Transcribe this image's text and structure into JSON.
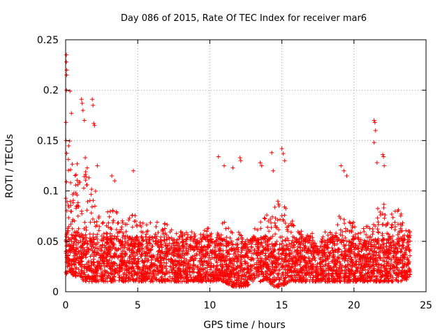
{
  "chart_data": {
    "type": "scatter",
    "title": "Day 086 of 2015, Rate Of TEC Index for receiver mar6",
    "xlabel": "GPS time / hours",
    "ylabel": "ROTI / TECUs",
    "xlim": [
      0,
      25
    ],
    "ylim": [
      0,
      0.25
    ],
    "x_ticks": [
      0,
      5,
      10,
      15,
      20,
      25
    ],
    "y_ticks": [
      0,
      0.05,
      0.1,
      0.15,
      0.2,
      0.25
    ],
    "x_tick_labels": [
      "0",
      "5",
      "10",
      "15",
      "20",
      "25"
    ],
    "y_tick_labels": [
      "0",
      "0.05",
      "0.1",
      "0.15",
      "0.2",
      "0.25"
    ],
    "grid": true,
    "marker": "+",
    "color": "#ff0000",
    "time_range_hours": [
      0,
      23.9
    ],
    "series": [
      {
        "name": "ROTI",
        "envelope": {
          "x": [
            0.0,
            0.15,
            0.3,
            0.6,
            1.0,
            1.3,
            1.6,
            1.9,
            2.3,
            2.7,
            3.1,
            3.5,
            4.0,
            4.5,
            5.0,
            5.5,
            6.0,
            6.5,
            7.0,
            7.5,
            8.0,
            8.5,
            9.0,
            9.5,
            10.0,
            10.5,
            11.0,
            11.5,
            12.0,
            12.5,
            13.0,
            13.5,
            14.0,
            14.5,
            15.0,
            15.5,
            16.0,
            16.5,
            17.0,
            17.5,
            18.0,
            18.5,
            19.0,
            19.5,
            20.0,
            20.5,
            21.0,
            21.5,
            22.0,
            22.5,
            23.0,
            23.5,
            23.9
          ],
          "high": [
            0.13,
            0.16,
            0.15,
            0.13,
            0.14,
            0.14,
            0.12,
            0.12,
            0.08,
            0.07,
            0.09,
            0.09,
            0.07,
            0.08,
            0.08,
            0.07,
            0.07,
            0.07,
            0.07,
            0.06,
            0.06,
            0.06,
            0.06,
            0.06,
            0.07,
            0.07,
            0.07,
            0.06,
            0.06,
            0.05,
            0.06,
            0.08,
            0.08,
            0.09,
            0.1,
            0.08,
            0.07,
            0.06,
            0.06,
            0.05,
            0.06,
            0.06,
            0.08,
            0.07,
            0.07,
            0.06,
            0.07,
            0.08,
            0.09,
            0.08,
            0.09,
            0.07,
            0.06
          ],
          "low": [
            0.015,
            0.02,
            0.02,
            0.015,
            0.015,
            0.01,
            0.01,
            0.01,
            0.01,
            0.01,
            0.01,
            0.01,
            0.01,
            0.01,
            0.01,
            0.01,
            0.01,
            0.01,
            0.01,
            0.01,
            0.01,
            0.01,
            0.01,
            0.01,
            0.01,
            0.01,
            0.01,
            0.005,
            0.005,
            0.005,
            0.01,
            0.01,
            0.01,
            0.005,
            0.005,
            0.01,
            0.01,
            0.01,
            0.01,
            0.01,
            0.01,
            0.01,
            0.01,
            0.01,
            0.01,
            0.01,
            0.01,
            0.01,
            0.01,
            0.01,
            0.01,
            0.01,
            0.015
          ]
        },
        "outliers": [
          [
            0.05,
            0.235
          ],
          [
            0.05,
            0.228
          ],
          [
            0.08,
            0.22
          ],
          [
            0.07,
            0.215
          ],
          [
            0.06,
            0.2
          ],
          [
            0.3,
            0.199
          ],
          [
            0.4,
            0.177
          ],
          [
            0.02,
            0.168
          ],
          [
            0.02,
            0.15
          ],
          [
            1.1,
            0.191
          ],
          [
            1.15,
            0.187
          ],
          [
            1.2,
            0.18
          ],
          [
            1.3,
            0.17
          ],
          [
            1.85,
            0.191
          ],
          [
            1.9,
            0.185
          ],
          [
            1.95,
            0.167
          ],
          [
            2.0,
            0.165
          ],
          [
            2.2,
            0.125
          ],
          [
            3.2,
            0.115
          ],
          [
            3.4,
            0.11
          ],
          [
            4.7,
            0.12
          ],
          [
            10.6,
            0.134
          ],
          [
            11.0,
            0.125
          ],
          [
            11.6,
            0.123
          ],
          [
            12.1,
            0.133
          ],
          [
            12.15,
            0.13
          ],
          [
            13.5,
            0.128
          ],
          [
            13.6,
            0.125
          ],
          [
            14.3,
            0.138
          ],
          [
            14.4,
            0.12
          ],
          [
            15.0,
            0.142
          ],
          [
            15.1,
            0.137
          ],
          [
            15.2,
            0.13
          ],
          [
            19.1,
            0.125
          ],
          [
            19.3,
            0.12
          ],
          [
            19.5,
            0.115
          ],
          [
            21.4,
            0.17
          ],
          [
            21.45,
            0.168
          ],
          [
            21.5,
            0.16
          ],
          [
            21.4,
            0.148
          ],
          [
            21.6,
            0.128
          ],
          [
            22.0,
            0.136
          ],
          [
            22.05,
            0.134
          ],
          [
            22.1,
            0.125
          ]
        ]
      }
    ]
  }
}
